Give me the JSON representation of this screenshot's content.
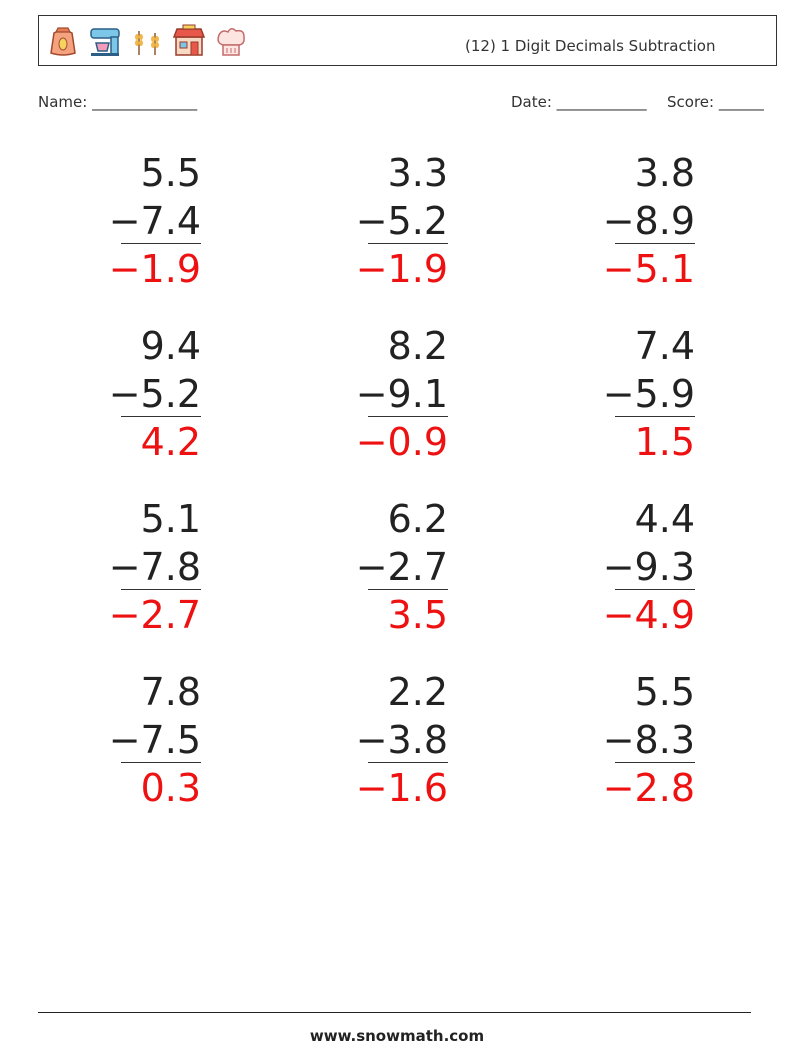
{
  "header": {
    "title": "(12) 1 Digit Decimals Subtraction",
    "icons": [
      "flour-sack-icon",
      "stand-mixer-icon",
      "wheat-icon",
      "bakery-shop-icon",
      "chef-hat-icon"
    ]
  },
  "meta": {
    "name_label": "Name: ______________",
    "date_label": "Date: ____________",
    "score_label": "Score: ______"
  },
  "problems": [
    {
      "top": "5.5",
      "bottom": "−7.4",
      "answer": "−1.9"
    },
    {
      "top": "3.3",
      "bottom": "−5.2",
      "answer": "−1.9"
    },
    {
      "top": "3.8",
      "bottom": "−8.9",
      "answer": "−5.1"
    },
    {
      "top": "9.4",
      "bottom": "−5.2",
      "answer": "4.2"
    },
    {
      "top": "8.2",
      "bottom": "−9.1",
      "answer": "−0.9"
    },
    {
      "top": "7.4",
      "bottom": "−5.9",
      "answer": "1.5"
    },
    {
      "top": "5.1",
      "bottom": "−7.8",
      "answer": "−2.7"
    },
    {
      "top": "6.2",
      "bottom": "−2.7",
      "answer": "3.5"
    },
    {
      "top": "4.4",
      "bottom": "−9.3",
      "answer": "−4.9"
    },
    {
      "top": "7.8",
      "bottom": "−7.5",
      "answer": "0.3"
    },
    {
      "top": "2.2",
      "bottom": "−3.8",
      "answer": "−1.6"
    },
    {
      "top": "5.5",
      "bottom": "−8.3",
      "answer": "−2.8"
    }
  ],
  "colors": {
    "answer": "#ee1111",
    "text": "#222222"
  },
  "footer": {
    "url": "www.snowmath.com"
  }
}
